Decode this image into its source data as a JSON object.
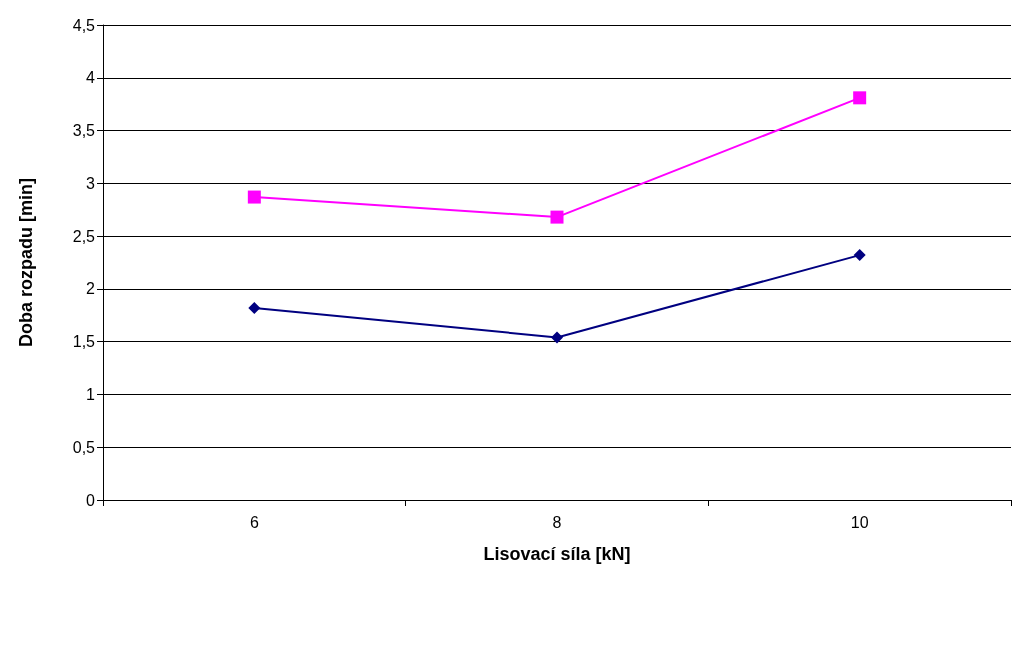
{
  "chart_data": {
    "type": "line",
    "xlabel": "Lisovací síla [kN]",
    "ylabel": "Doba rozpadu [min]",
    "categories": [
      "6",
      "8",
      "10"
    ],
    "series": [
      {
        "color": "#000080",
        "marker": "diamond",
        "values": [
          1.82,
          1.54,
          2.32
        ]
      },
      {
        "color": "#ff00ff",
        "marker": "square",
        "values": [
          2.87,
          2.68,
          3.81
        ]
      }
    ],
    "ylim": [
      0,
      4.5
    ],
    "yticks": [
      0,
      {
        "value": 0.5,
        "label": "0,5"
      },
      1,
      {
        "value": 1.5,
        "label": "1,5"
      },
      2,
      {
        "value": 2.5,
        "label": "2,5"
      },
      3,
      {
        "value": 3.5,
        "label": "3,5"
      },
      4,
      {
        "value": 4.5,
        "label": "4,5"
      }
    ],
    "grid": "y"
  }
}
